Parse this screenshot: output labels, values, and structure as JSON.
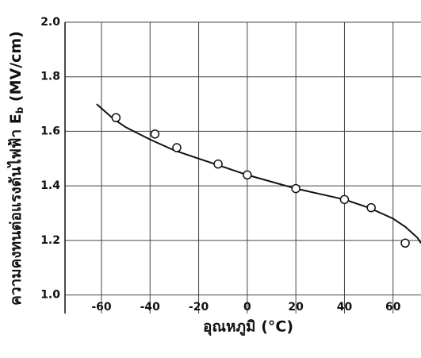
{
  "chart_data": {
    "type": "scatter",
    "xlabel": "อุณหภูมิ (°C)",
    "ylabel": [
      "ความคงทนต่อแรงดันไฟฟ้า E",
      "b",
      " (MV/cm)"
    ],
    "xlim": [
      -75,
      71.5
    ],
    "ylim": [
      0.99,
      2.0
    ],
    "xticks": [
      -60,
      -40,
      -20,
      0,
      20,
      40,
      60
    ],
    "yticks": [
      {
        "value": 1.0,
        "label": "1.0"
      },
      1.2,
      1.4,
      1.6,
      1.8,
      {
        "value": 2.0,
        "label": "2.0"
      }
    ],
    "grid": true,
    "series": [
      {
        "kind": "line",
        "color": "#111111",
        "x": [
          -62,
          -55,
          -50,
          -40,
          -30,
          -20,
          -10,
          0,
          10,
          20,
          30,
          40,
          50,
          55,
          60,
          65,
          70,
          71.5
        ],
        "values": [
          1.7,
          1.645,
          1.615,
          1.57,
          1.53,
          1.5,
          1.47,
          1.44,
          1.415,
          1.39,
          1.37,
          1.35,
          1.32,
          1.3,
          1.28,
          1.25,
          1.21,
          1.19
        ]
      },
      {
        "kind": "markers",
        "color": "#111111",
        "x": [
          -54,
          -38,
          -29,
          -12,
          0,
          20,
          40,
          51,
          65
        ],
        "values": [
          1.65,
          1.59,
          1.54,
          1.48,
          1.44,
          1.39,
          1.35,
          1.32,
          1.19
        ]
      }
    ]
  }
}
